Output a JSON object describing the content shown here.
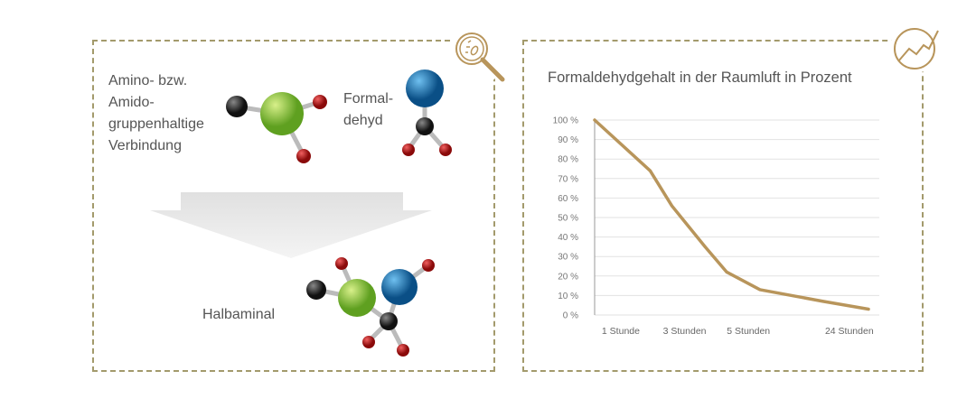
{
  "left_panel": {
    "reactant1": [
      "Amino- bzw.",
      "Amido-",
      "gruppenhaltige",
      "Verbindung"
    ],
    "reactant2": [
      "Formal-",
      "dehyd"
    ],
    "product": "Halbaminal",
    "icon": "magnifier-bacteria-icon"
  },
  "right_panel": {
    "icon": "trend-chart-icon"
  },
  "colors": {
    "accent": "#b8955b",
    "border": "#a39a6c",
    "green": "#8cc63f",
    "blue": "#1a6fa8",
    "red": "#c0201d",
    "dark": "#333333"
  },
  "chart_data": {
    "type": "line",
    "title": "Formaldehydgehalt in der Raumluft in Prozent",
    "xlabel": "",
    "ylabel": "",
    "ylim": [
      0,
      100
    ],
    "yticks": [
      "0 %",
      "10 %",
      "20 %",
      "30 %",
      "40 %",
      "50 %",
      "60 %",
      "70 %",
      "80 %",
      "90 %",
      "100 %"
    ],
    "xticks": [
      {
        "x": 1,
        "label": "1 Stunde"
      },
      {
        "x": 2,
        "label": "3 Stunden"
      },
      {
        "x": 3,
        "label": "5 Stunden"
      },
      {
        "x": 4.58,
        "label": "24 Stunden"
      }
    ],
    "xlim": [
      0.59,
      5.05
    ],
    "grid": true,
    "series": [
      {
        "x": [
          0.59,
          1.46,
          1.8,
          2.32,
          2.66,
          3.18,
          4.17,
          4.88
        ],
        "y": [
          100,
          74,
          56,
          35,
          22,
          13,
          7,
          3
        ]
      }
    ]
  }
}
